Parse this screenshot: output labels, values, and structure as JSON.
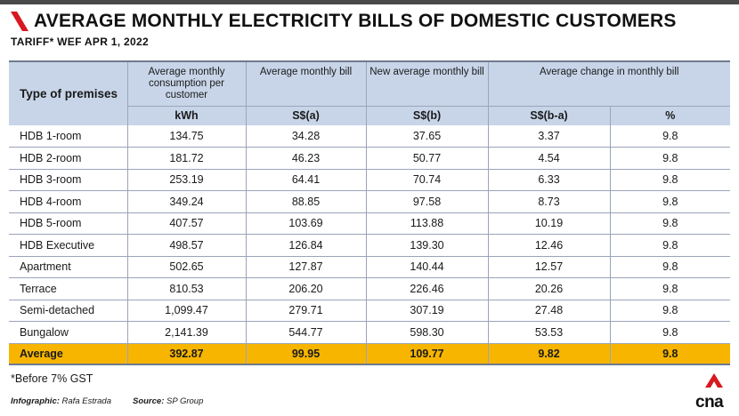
{
  "title": "AVERAGE MONTHLY ELECTRICITY BILLS OF DOMESTIC CUSTOMERS",
  "subtitle": "TARIFF* WEF APR 1, 2022",
  "colors": {
    "accent": "#d71920",
    "header_bg": "#c8d5e9",
    "highlight": "#f7b500"
  },
  "table": {
    "headers": {
      "type": "Type of premises",
      "consumption": "Average monthly consumption per customer",
      "avg_bill": "Average monthly bill",
      "new_bill": "New average monthly bill",
      "change": "Average change in monthly bill"
    },
    "units": {
      "consumption": "kWh",
      "avg_bill": "S$(a)",
      "new_bill": "S$(b)",
      "change_abs": "S$(b-a)",
      "change_pct": "%"
    },
    "rows": [
      [
        "HDB 1-room",
        "134.75",
        "34.28",
        "37.65",
        "3.37",
        "9.8"
      ],
      [
        "HDB 2-room",
        "181.72",
        "46.23",
        "50.77",
        "4.54",
        "9.8"
      ],
      [
        "HDB 3-room",
        "253.19",
        "64.41",
        "70.74",
        "6.33",
        "9.8"
      ],
      [
        "HDB 4-room",
        "349.24",
        "88.85",
        "97.58",
        "8.73",
        "9.8"
      ],
      [
        "HDB 5-room",
        "407.57",
        "103.69",
        "113.88",
        "10.19",
        "9.8"
      ],
      [
        "HDB Executive",
        "498.57",
        "126.84",
        "139.30",
        "12.46",
        "9.8"
      ],
      [
        "Apartment",
        "502.65",
        "127.87",
        "140.44",
        "12.57",
        "9.8"
      ],
      [
        "Terrace",
        "810.53",
        "206.20",
        "226.46",
        "20.26",
        "9.8"
      ],
      [
        "Semi-detached",
        "1,099.47",
        "279.71",
        "307.19",
        "27.48",
        "9.8"
      ],
      [
        "Bungalow",
        "2,141.39",
        "544.77",
        "598.30",
        "53.53",
        "9.8"
      ]
    ],
    "average": [
      "Average",
      "392.87",
      "99.95",
      "109.77",
      "9.82",
      "9.8"
    ]
  },
  "footnote": "*Before 7% GST",
  "credits": {
    "infographic_label": "Infographic:",
    "infographic_value": "Rafa Estrada",
    "source_label": "Source:",
    "source_value": "SP Group"
  },
  "logo": {
    "text": "cna",
    "icon": "cna-logo-icon"
  }
}
